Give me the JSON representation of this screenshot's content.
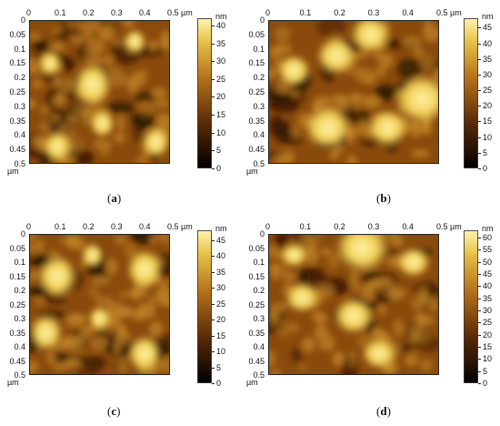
{
  "panels": [
    {
      "caption": "(a)",
      "x_ticks": [
        "0",
        "0.1",
        "0.2",
        "0.3",
        "0.4",
        "0.5 µm"
      ],
      "y_ticks": [
        "0",
        "0.05",
        "0.1",
        "0.15",
        "0.2",
        "0.25",
        "0.3",
        "0.35",
        "0.4",
        "0.45",
        "0.5"
      ],
      "y_unit": "µm",
      "colorbar_unit": "nm",
      "colorbar_ticks": [
        "40",
        "35",
        "30",
        "25",
        "20",
        "15",
        "10",
        "5",
        "0"
      ],
      "colorbar_max": 42
    },
    {
      "caption": "(b)",
      "x_ticks": [
        "0",
        "0.1",
        "0.2",
        "0.3",
        "0.4",
        "0.5 µm"
      ],
      "y_ticks": [
        "0",
        "0.05",
        "0.1",
        "0.15",
        "0.2",
        "0.25",
        "0.3",
        "0.35",
        "0.4",
        "0.45",
        "0.5"
      ],
      "y_unit": "µm",
      "colorbar_unit": "nm",
      "colorbar_ticks": [
        "45",
        "40",
        "35",
        "30",
        "25",
        "20",
        "15",
        "10",
        "5",
        "0"
      ],
      "colorbar_max": 48
    },
    {
      "caption": "(c)",
      "x_ticks": [
        "0",
        "0.1",
        "0.2",
        "0.3",
        "0.4",
        "0.5 µm"
      ],
      "y_ticks": [
        "0",
        "0.05",
        "0.1",
        "0.15",
        "0.2",
        "0.25",
        "0.3",
        "0.35",
        "0.4",
        "0.45",
        "0.5"
      ],
      "y_unit": "µm",
      "colorbar_unit": "nm",
      "colorbar_ticks": [
        "45",
        "40",
        "35",
        "30",
        "25",
        "20",
        "15",
        "10",
        "5",
        "0"
      ],
      "colorbar_max": 48
    },
    {
      "caption": "(d)",
      "x_ticks": [
        "0",
        "0.1",
        "0.2",
        "0.3",
        "0.4",
        "0.5 µm"
      ],
      "y_ticks": [
        "0",
        "0.05",
        "0.1",
        "0.15",
        "0.2",
        "0.25",
        "0.3",
        "0.35",
        "0.4",
        "0.45",
        "0.5"
      ],
      "y_unit": "µm",
      "colorbar_unit": "nm",
      "colorbar_ticks": [
        "60",
        "55",
        "50",
        "45",
        "40",
        "35",
        "30",
        "25",
        "20",
        "15",
        "10",
        "5",
        "0"
      ],
      "colorbar_max": 63
    }
  ],
  "colors": {
    "dark": "#1a0a00",
    "mid": "#8a4a0c",
    "bright": "#f2d35a",
    "highlight": "#fff0a8"
  }
}
